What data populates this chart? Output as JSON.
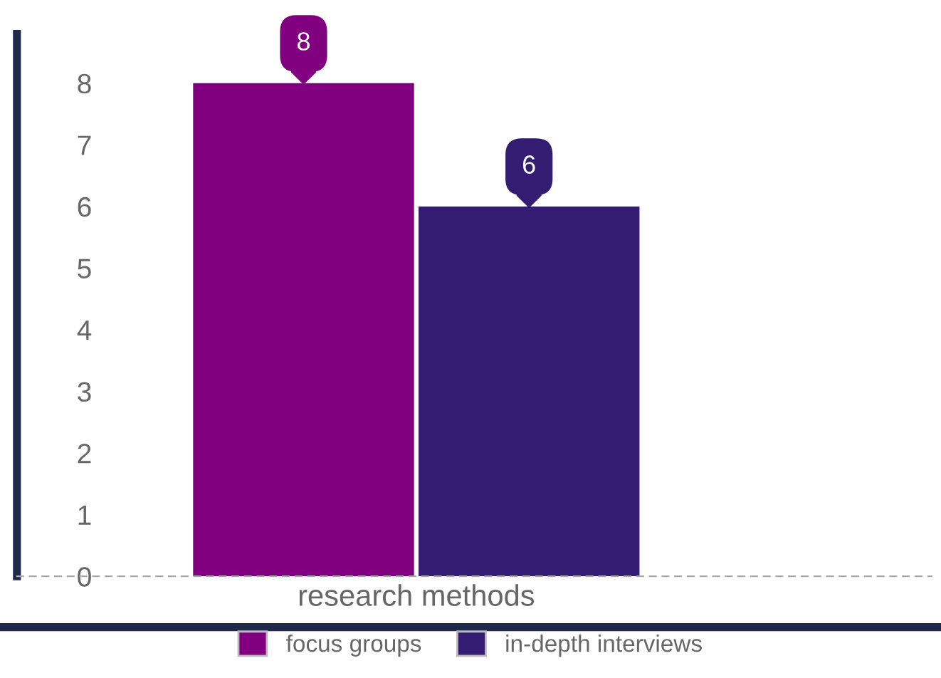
{
  "chart_data": {
    "type": "bar",
    "categories": [
      "research methods"
    ],
    "series": [
      {
        "name": "focus groups",
        "color": "#800080",
        "values": [
          8
        ]
      },
      {
        "name": "in-depth interviews",
        "color": "#331c71",
        "values": [
          6
        ]
      }
    ],
    "ylim": [
      0,
      8.8
    ],
    "yticks": [
      0,
      1,
      2,
      3,
      4,
      5,
      6,
      7,
      8
    ],
    "grid": false,
    "legend": "bottom",
    "data_labels": true
  }
}
